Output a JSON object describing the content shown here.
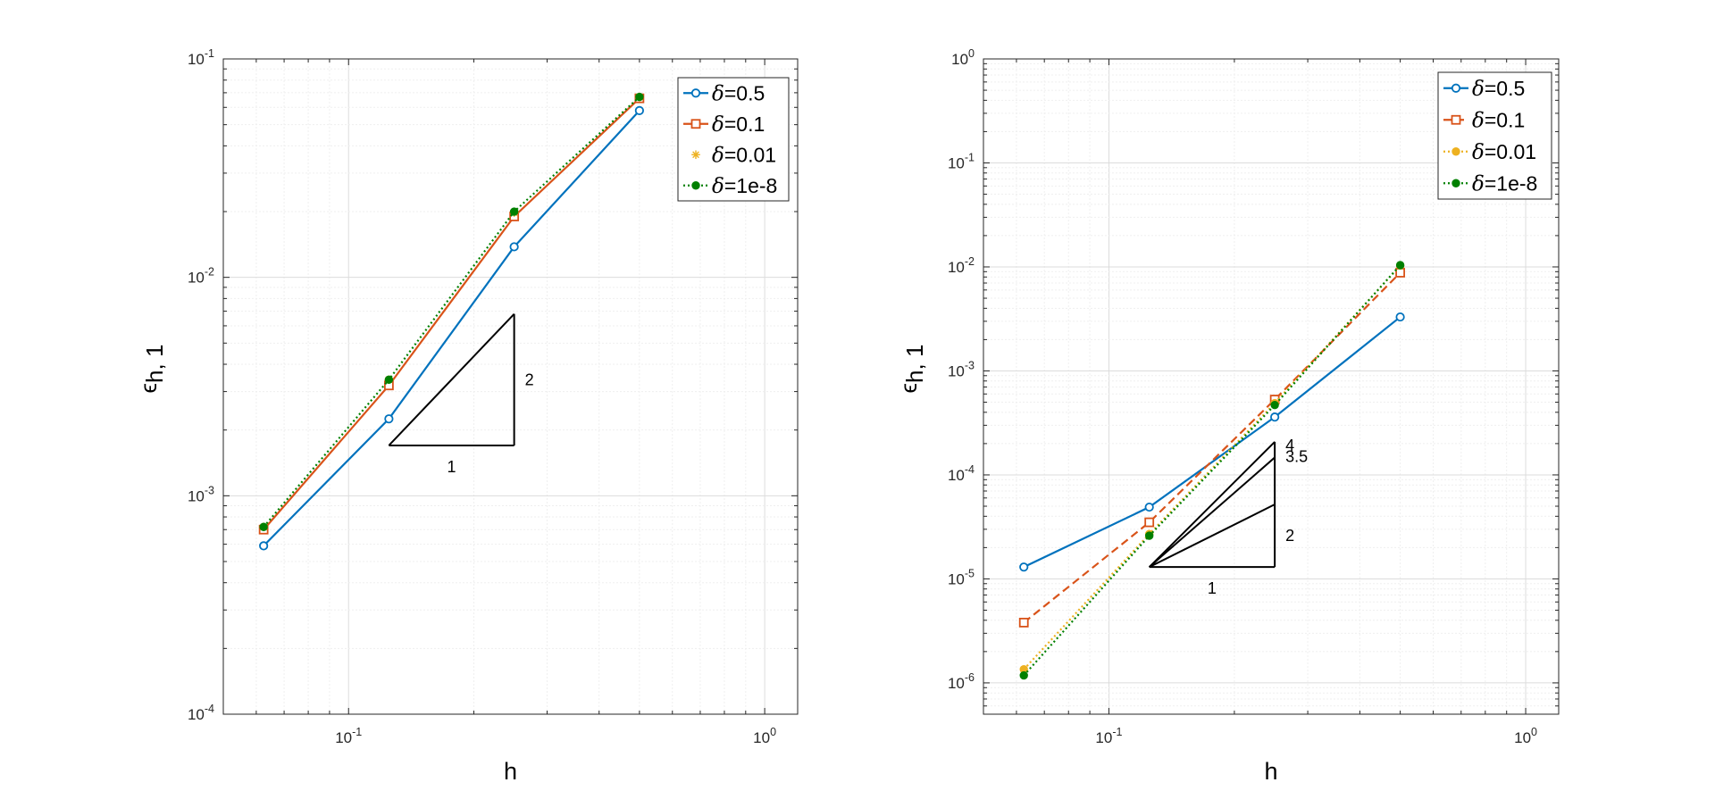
{
  "chart_data": [
    {
      "type": "line",
      "xscale": "log",
      "yscale": "log",
      "xlim": [
        0.05,
        1.2
      ],
      "ylim": [
        0.0001,
        0.1
      ],
      "xlabel": "h",
      "ylabel_main": "ϵ",
      "ylabel_sub": "h, 1",
      "grid": true,
      "legend_position": "top-right",
      "x_ticks": [
        {
          "value": 0.1,
          "base": "10",
          "exp": "-1"
        },
        {
          "value": 1,
          "base": "10",
          "exp": "0"
        }
      ],
      "y_ticks": [
        {
          "value": 0.0001,
          "base": "10",
          "exp": "-4"
        },
        {
          "value": 0.001,
          "base": "10",
          "exp": "-3"
        },
        {
          "value": 0.01,
          "base": "10",
          "exp": "-2"
        },
        {
          "value": 0.1,
          "base": "10",
          "exp": "-1"
        }
      ],
      "x": [
        0.0625,
        0.125,
        0.25,
        0.5
      ],
      "series": [
        {
          "name": "δ=0.5",
          "name_delta": "δ",
          "name_value": "=0.5",
          "color": "#0072BD",
          "values": [
            0.00059,
            0.00225,
            0.0138,
            0.058
          ],
          "marker": "circle",
          "dash": "solid"
        },
        {
          "name": "δ=0.1",
          "name_delta": "δ",
          "name_value": "=0.1",
          "color": "#D95319",
          "values": [
            0.0007,
            0.0032,
            0.019,
            0.066
          ],
          "marker": "square",
          "dash": "solid"
        },
        {
          "name": "δ=0.01",
          "name_delta": "δ",
          "name_value": "=0.01",
          "color": "#EDB120",
          "values": [
            0.00072,
            0.0034,
            0.0198,
            0.067
          ],
          "marker": "asterisk",
          "dash": "none"
        },
        {
          "name": "δ=1e-8",
          "name_delta": "δ",
          "name_value": "=1e-8",
          "color": "#008000",
          "values": [
            0.00072,
            0.0034,
            0.02,
            0.067
          ],
          "marker": "circle-filled",
          "dash": "dotted"
        }
      ],
      "slope_triangles": {
        "origin": [
          0.125,
          0.0017
        ],
        "run": 2,
        "slopes": [
          2
        ],
        "slope_labels": [
          "2"
        ],
        "run_label": "1"
      }
    },
    {
      "type": "line",
      "xscale": "log",
      "yscale": "log",
      "xlim": [
        0.05,
        1.2
      ],
      "ylim": [
        5e-07,
        1
      ],
      "xlabel": "h",
      "ylabel_main": "ϵ",
      "ylabel_sub": "h, 1",
      "grid": true,
      "legend_position": "top-right",
      "x_ticks": [
        {
          "value": 0.1,
          "base": "10",
          "exp": "-1"
        },
        {
          "value": 1,
          "base": "10",
          "exp": "0"
        }
      ],
      "y_ticks": [
        {
          "value": 1e-06,
          "base": "10",
          "exp": "-6"
        },
        {
          "value": 1e-05,
          "base": "10",
          "exp": "-5"
        },
        {
          "value": 0.0001,
          "base": "10",
          "exp": "-4"
        },
        {
          "value": 0.001,
          "base": "10",
          "exp": "-3"
        },
        {
          "value": 0.01,
          "base": "10",
          "exp": "-2"
        },
        {
          "value": 0.1,
          "base": "10",
          "exp": "-1"
        },
        {
          "value": 1,
          "base": "10",
          "exp": "0"
        }
      ],
      "x": [
        0.0625,
        0.125,
        0.25,
        0.5
      ],
      "series": [
        {
          "name": "δ=0.5",
          "name_delta": "δ",
          "name_value": "=0.5",
          "color": "#0072BD",
          "values": [
            1.3e-05,
            4.9e-05,
            0.00036,
            0.0033
          ],
          "marker": "circle",
          "dash": "solid"
        },
        {
          "name": "δ=0.1",
          "name_delta": "δ",
          "name_value": "=0.1",
          "color": "#D95319",
          "values": [
            3.8e-06,
            3.5e-05,
            0.00053,
            0.0088
          ],
          "marker": "square",
          "dash": "dashed"
        },
        {
          "name": "δ=0.01",
          "name_delta": "δ",
          "name_value": "=0.01",
          "color": "#EDB120",
          "values": [
            1.35e-06,
            2.7e-05,
            0.00049,
            0.0103
          ],
          "marker": "circle-filled",
          "dash": "dotted"
        },
        {
          "name": "δ=1e-8",
          "name_delta": "δ",
          "name_value": "=1e-8",
          "color": "#008000",
          "values": [
            1.18e-06,
            2.6e-05,
            0.00047,
            0.0104
          ],
          "marker": "circle-filled",
          "dash": "dotted"
        }
      ],
      "slope_triangles": {
        "origin": [
          0.125,
          1.3e-05
        ],
        "run": 2,
        "slopes": [
          4,
          3.5,
          2
        ],
        "slope_labels": [
          "4",
          "3.5",
          "2"
        ],
        "run_label": "1"
      }
    }
  ]
}
